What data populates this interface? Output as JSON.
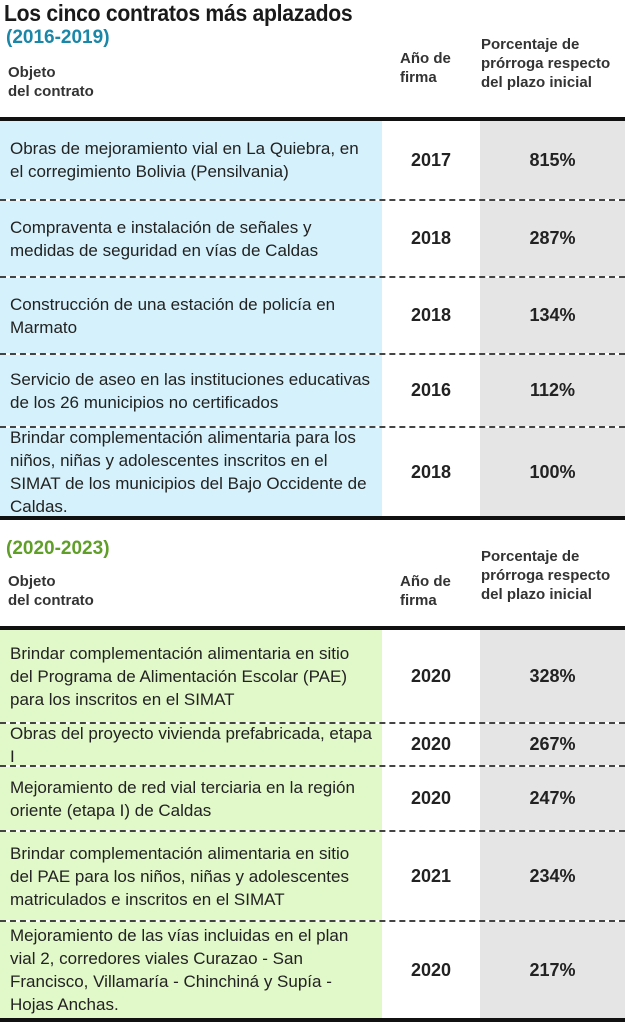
{
  "title": "Los cinco contratos más aplazados",
  "headers": {
    "objeto_line1": "Objeto",
    "objeto_line2": "del contrato",
    "anio_line1": "Año de",
    "anio_line2": "firma",
    "pct_line1": "Porcentaje de",
    "pct_line2": "prórroga respecto",
    "pct_line3": "del plazo inicial"
  },
  "sections": [
    {
      "period": "(2016-2019)",
      "color": "#1a86a8",
      "rows": [
        {
          "objeto": "Obras de mejoramiento vial en La Quiebra, en el corregimiento Bolivia (Pensilvania)",
          "anio": "2017",
          "pct": "815%"
        },
        {
          "objeto": "Compraventa e instalación de señales y medidas de seguridad en vías de Caldas",
          "anio": "2018",
          "pct": "287%"
        },
        {
          "objeto": "Construcción de una estación de policía en Marmato",
          "anio": "2018",
          "pct": "134%"
        },
        {
          "objeto": "Servicio de aseo en las instituciones educativas de los 26 municipios no certificados",
          "anio": "2016",
          "pct": "112%"
        },
        {
          "objeto": "Brindar complementación alimentaria para los niños, niñas y adolescentes inscritos en el SIMAT de los municipios del Bajo Occidente de Caldas.",
          "anio": "2018",
          "pct": "100%"
        }
      ]
    },
    {
      "period": "(2020-2023)",
      "color": "#5f9e28",
      "rows": [
        {
          "objeto": "Brindar complementación alimentaria en sitio del Programa de Alimentación Escolar (PAE) para los inscritos en el SIMAT",
          "anio": "2020",
          "pct": "328%"
        },
        {
          "objeto": "Obras del proyecto vivienda prefabricada, etapa I",
          "anio": "2020",
          "pct": "267%"
        },
        {
          "objeto": "Mejoramiento de red vial terciaria en la región oriente (etapa I) de Caldas",
          "anio": "2020",
          "pct": "247%"
        },
        {
          "objeto": "Brindar complementación alimentaria en sitio del PAE para los niños, niñas y adolescentes matriculados e inscritos en el SIMAT",
          "anio": "2021",
          "pct": "234%"
        },
        {
          "objeto": "Mejoramiento de las vías incluidas en el plan vial 2, corredores viales Curazao - San Francisco, Villamaría - Chinchiná y Supía - Hojas Anchas.",
          "anio": "2020",
          "pct": "217%"
        }
      ]
    }
  ]
}
